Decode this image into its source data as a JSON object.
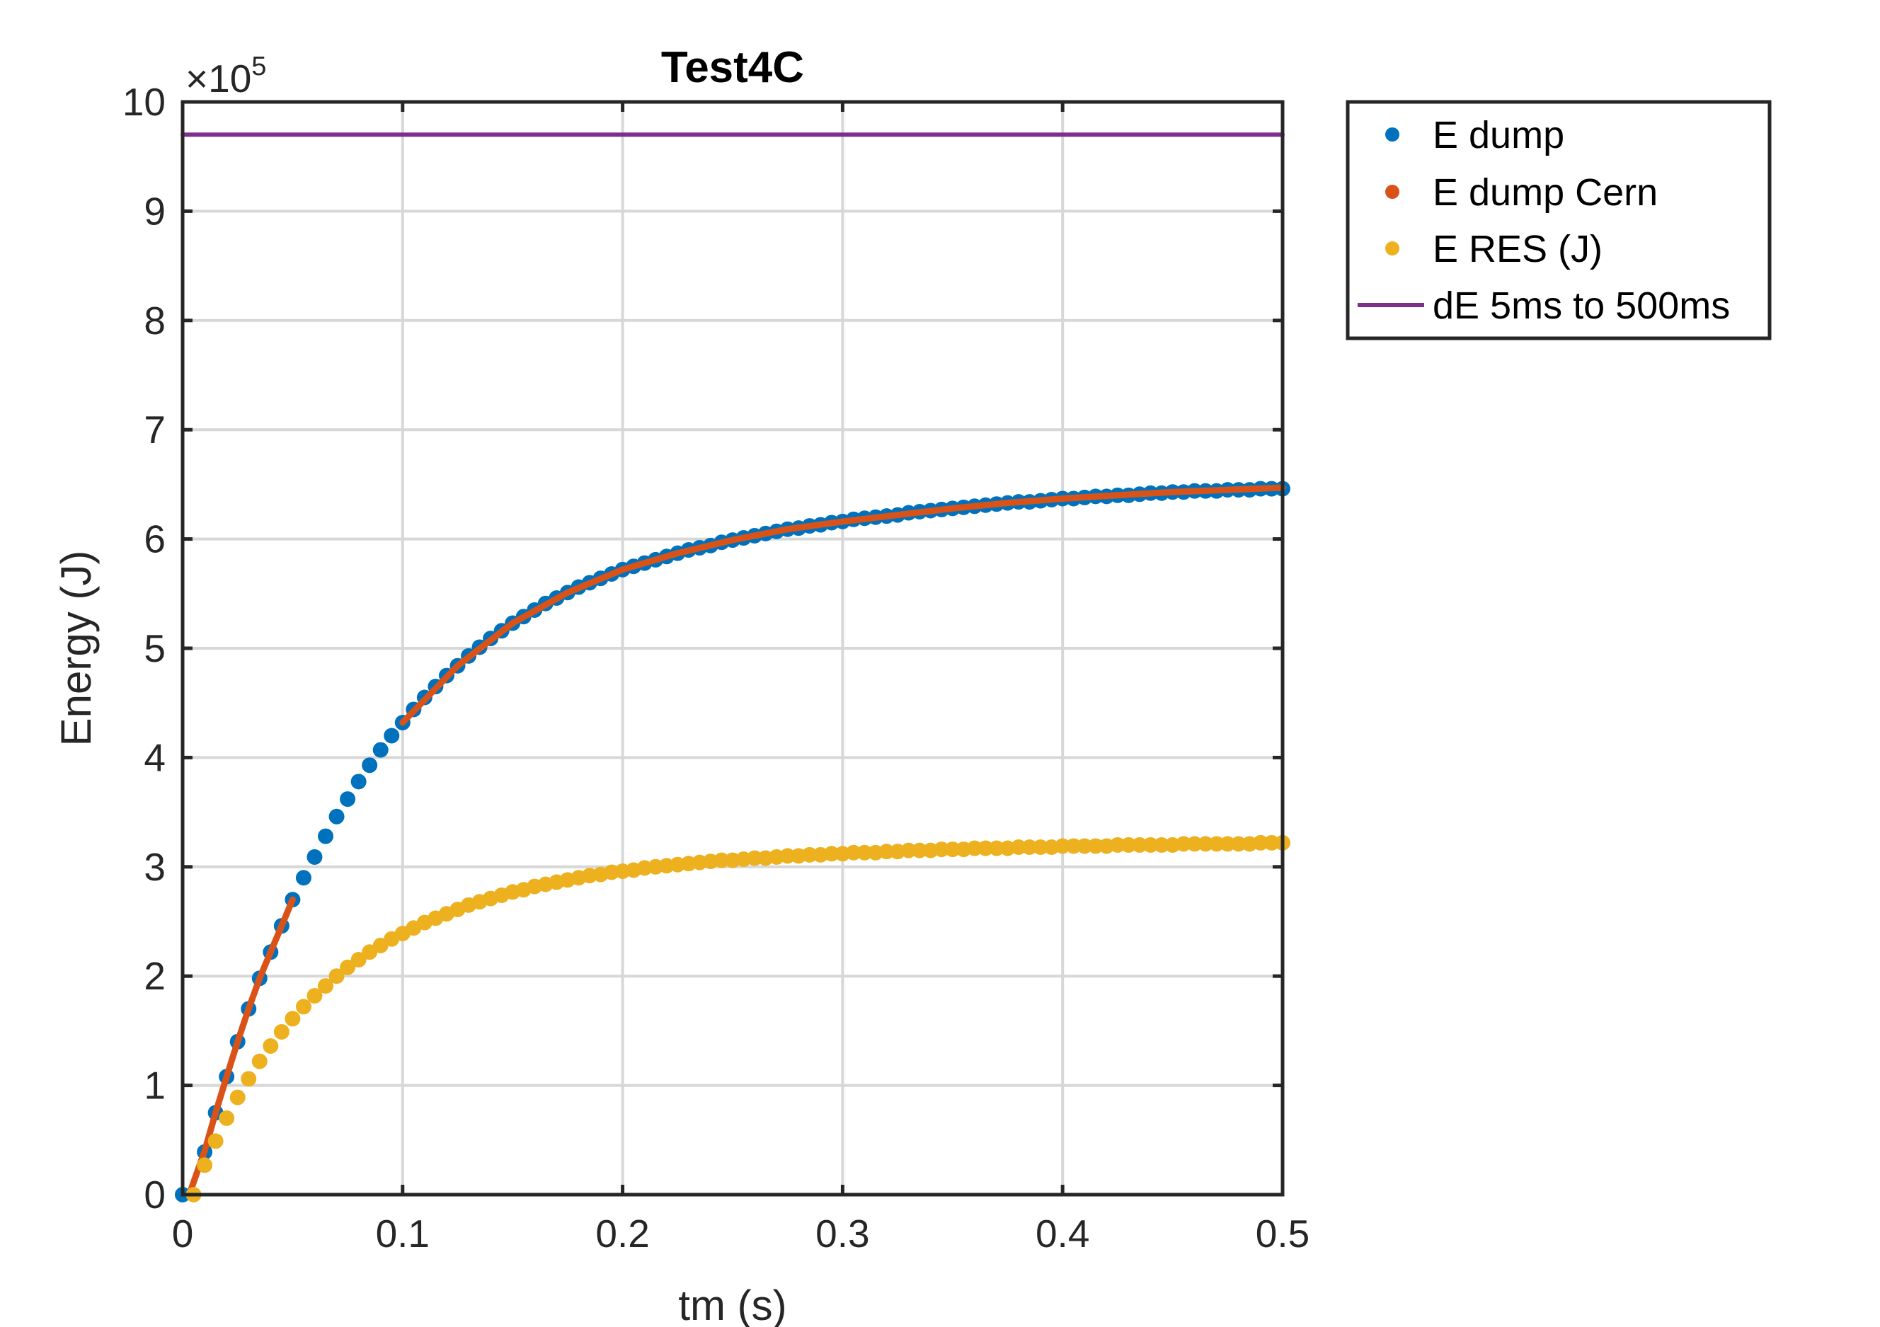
{
  "chart_data": {
    "type": "scatter",
    "title": "Test4C",
    "xlabel": "tm (s)",
    "ylabel": "Energy (J)",
    "y_exponent_prefix": "×10",
    "y_exponent_power": "5",
    "xlim": [
      0,
      0.5
    ],
    "ylim": [
      0,
      10
    ],
    "y_scale_factor": 100000,
    "grid": true,
    "legend_position": "outside-top-right",
    "x_ticks": [
      0,
      0.1,
      0.2,
      0.3,
      0.4,
      0.5
    ],
    "x_tick_labels": [
      "0",
      "0.1",
      "0.2",
      "0.3",
      "0.4",
      "0.5"
    ],
    "y_ticks": [
      0,
      1,
      2,
      3,
      4,
      5,
      6,
      7,
      8,
      9,
      10
    ],
    "y_tick_labels": [
      "0",
      "1",
      "2",
      "3",
      "4",
      "5",
      "6",
      "7",
      "8",
      "9",
      "10"
    ],
    "series": [
      {
        "name": "E dump",
        "style": "markers",
        "color": "#0072BD",
        "x": [
          0.0,
          0.01,
          0.015,
          0.02,
          0.025,
          0.03,
          0.035,
          0.04,
          0.045,
          0.05,
          0.055,
          0.06,
          0.065,
          0.07,
          0.075,
          0.08,
          0.085,
          0.09,
          0.095,
          0.1,
          0.105,
          0.11,
          0.115,
          0.12,
          0.125,
          0.13,
          0.135,
          0.14,
          0.145,
          0.15,
          0.155,
          0.16,
          0.165,
          0.17,
          0.175,
          0.18,
          0.185,
          0.19,
          0.195,
          0.2,
          0.205,
          0.21,
          0.215,
          0.22,
          0.225,
          0.23,
          0.235,
          0.24,
          0.245,
          0.25,
          0.255,
          0.26,
          0.265,
          0.27,
          0.275,
          0.28,
          0.285,
          0.29,
          0.295,
          0.3,
          0.305,
          0.31,
          0.315,
          0.32,
          0.325,
          0.33,
          0.335,
          0.34,
          0.345,
          0.35,
          0.355,
          0.36,
          0.365,
          0.37,
          0.375,
          0.38,
          0.385,
          0.39,
          0.395,
          0.4,
          0.405,
          0.41,
          0.415,
          0.42,
          0.425,
          0.43,
          0.435,
          0.44,
          0.445,
          0.45,
          0.455,
          0.46,
          0.465,
          0.47,
          0.475,
          0.48,
          0.485,
          0.49,
          0.495,
          0.5
        ],
        "y": [
          0.0,
          0.39,
          0.75,
          1.08,
          1.4,
          1.7,
          1.98,
          2.22,
          2.46,
          2.7,
          2.9,
          3.09,
          3.28,
          3.46,
          3.62,
          3.78,
          3.93,
          4.07,
          4.2,
          4.32,
          4.44,
          4.55,
          4.65,
          4.75,
          4.84,
          4.93,
          5.01,
          5.09,
          5.16,
          5.23,
          5.29,
          5.35,
          5.41,
          5.46,
          5.51,
          5.56,
          5.6,
          5.64,
          5.68,
          5.72,
          5.75,
          5.78,
          5.81,
          5.84,
          5.87,
          5.9,
          5.92,
          5.94,
          5.97,
          5.99,
          6.01,
          6.03,
          6.05,
          6.07,
          6.09,
          6.1,
          6.12,
          6.13,
          6.15,
          6.16,
          6.18,
          6.19,
          6.2,
          6.21,
          6.22,
          6.24,
          6.25,
          6.26,
          6.27,
          6.28,
          6.29,
          6.3,
          6.31,
          6.32,
          6.33,
          6.34,
          6.34,
          6.35,
          6.36,
          6.37,
          6.37,
          6.38,
          6.39,
          6.39,
          6.4,
          6.4,
          6.41,
          6.42,
          6.42,
          6.43,
          6.43,
          6.44,
          6.44,
          6.44,
          6.45,
          6.45,
          6.45,
          6.46,
          6.46,
          6.46
        ]
      },
      {
        "name": "E dump Cern",
        "style": "line",
        "color": "#D95319",
        "x": [
          0.003,
          0.01,
          0.015,
          0.02,
          0.025,
          0.03,
          0.035,
          0.04,
          0.045,
          0.05
        ],
        "y": [
          0.0,
          0.4,
          0.75,
          1.08,
          1.4,
          1.7,
          1.98,
          2.22,
          2.46,
          2.7
        ],
        "x2": [
          0.1,
          0.125,
          0.15,
          0.175,
          0.2,
          0.225,
          0.25,
          0.275,
          0.3,
          0.325,
          0.35,
          0.375,
          0.4,
          0.425,
          0.45,
          0.475,
          0.5
        ],
        "y2": [
          4.32,
          4.84,
          5.23,
          5.51,
          5.72,
          5.87,
          5.99,
          6.09,
          6.16,
          6.22,
          6.28,
          6.33,
          6.37,
          6.4,
          6.43,
          6.45,
          6.47
        ]
      },
      {
        "name": "E RES (J)",
        "style": "markers",
        "color": "#EDB120",
        "x": [
          0.005,
          0.01,
          0.015,
          0.02,
          0.025,
          0.03,
          0.035,
          0.04,
          0.045,
          0.05,
          0.055,
          0.06,
          0.065,
          0.07,
          0.075,
          0.08,
          0.085,
          0.09,
          0.095,
          0.1,
          0.105,
          0.11,
          0.115,
          0.12,
          0.125,
          0.13,
          0.135,
          0.14,
          0.145,
          0.15,
          0.155,
          0.16,
          0.165,
          0.17,
          0.175,
          0.18,
          0.185,
          0.19,
          0.195,
          0.2,
          0.205,
          0.21,
          0.215,
          0.22,
          0.225,
          0.23,
          0.235,
          0.24,
          0.245,
          0.25,
          0.255,
          0.26,
          0.265,
          0.27,
          0.275,
          0.28,
          0.285,
          0.29,
          0.295,
          0.3,
          0.305,
          0.31,
          0.315,
          0.32,
          0.325,
          0.33,
          0.335,
          0.34,
          0.345,
          0.35,
          0.355,
          0.36,
          0.365,
          0.37,
          0.375,
          0.38,
          0.385,
          0.39,
          0.395,
          0.4,
          0.405,
          0.41,
          0.415,
          0.42,
          0.425,
          0.43,
          0.435,
          0.44,
          0.445,
          0.45,
          0.455,
          0.46,
          0.465,
          0.47,
          0.475,
          0.48,
          0.485,
          0.49,
          0.495,
          0.5
        ],
        "y": [
          0.0,
          0.27,
          0.49,
          0.7,
          0.89,
          1.06,
          1.22,
          1.36,
          1.49,
          1.61,
          1.72,
          1.82,
          1.91,
          2.0,
          2.08,
          2.15,
          2.22,
          2.28,
          2.34,
          2.39,
          2.44,
          2.49,
          2.53,
          2.57,
          2.61,
          2.65,
          2.68,
          2.71,
          2.74,
          2.77,
          2.79,
          2.82,
          2.84,
          2.86,
          2.88,
          2.9,
          2.92,
          2.93,
          2.95,
          2.96,
          2.97,
          2.99,
          3.0,
          3.01,
          3.02,
          3.03,
          3.04,
          3.05,
          3.06,
          3.06,
          3.07,
          3.08,
          3.08,
          3.09,
          3.1,
          3.1,
          3.11,
          3.11,
          3.12,
          3.12,
          3.13,
          3.13,
          3.13,
          3.14,
          3.14,
          3.15,
          3.15,
          3.15,
          3.16,
          3.16,
          3.16,
          3.17,
          3.17,
          3.17,
          3.17,
          3.18,
          3.18,
          3.18,
          3.18,
          3.19,
          3.19,
          3.19,
          3.19,
          3.19,
          3.2,
          3.2,
          3.2,
          3.2,
          3.2,
          3.2,
          3.21,
          3.21,
          3.21,
          3.21,
          3.21,
          3.21,
          3.21,
          3.22,
          3.22,
          3.22
        ]
      },
      {
        "name": "dE 5ms to 500ms",
        "style": "line",
        "color": "#7E2F8E",
        "x": [
          0,
          0.5
        ],
        "y": [
          9.7,
          9.7
        ]
      }
    ]
  }
}
